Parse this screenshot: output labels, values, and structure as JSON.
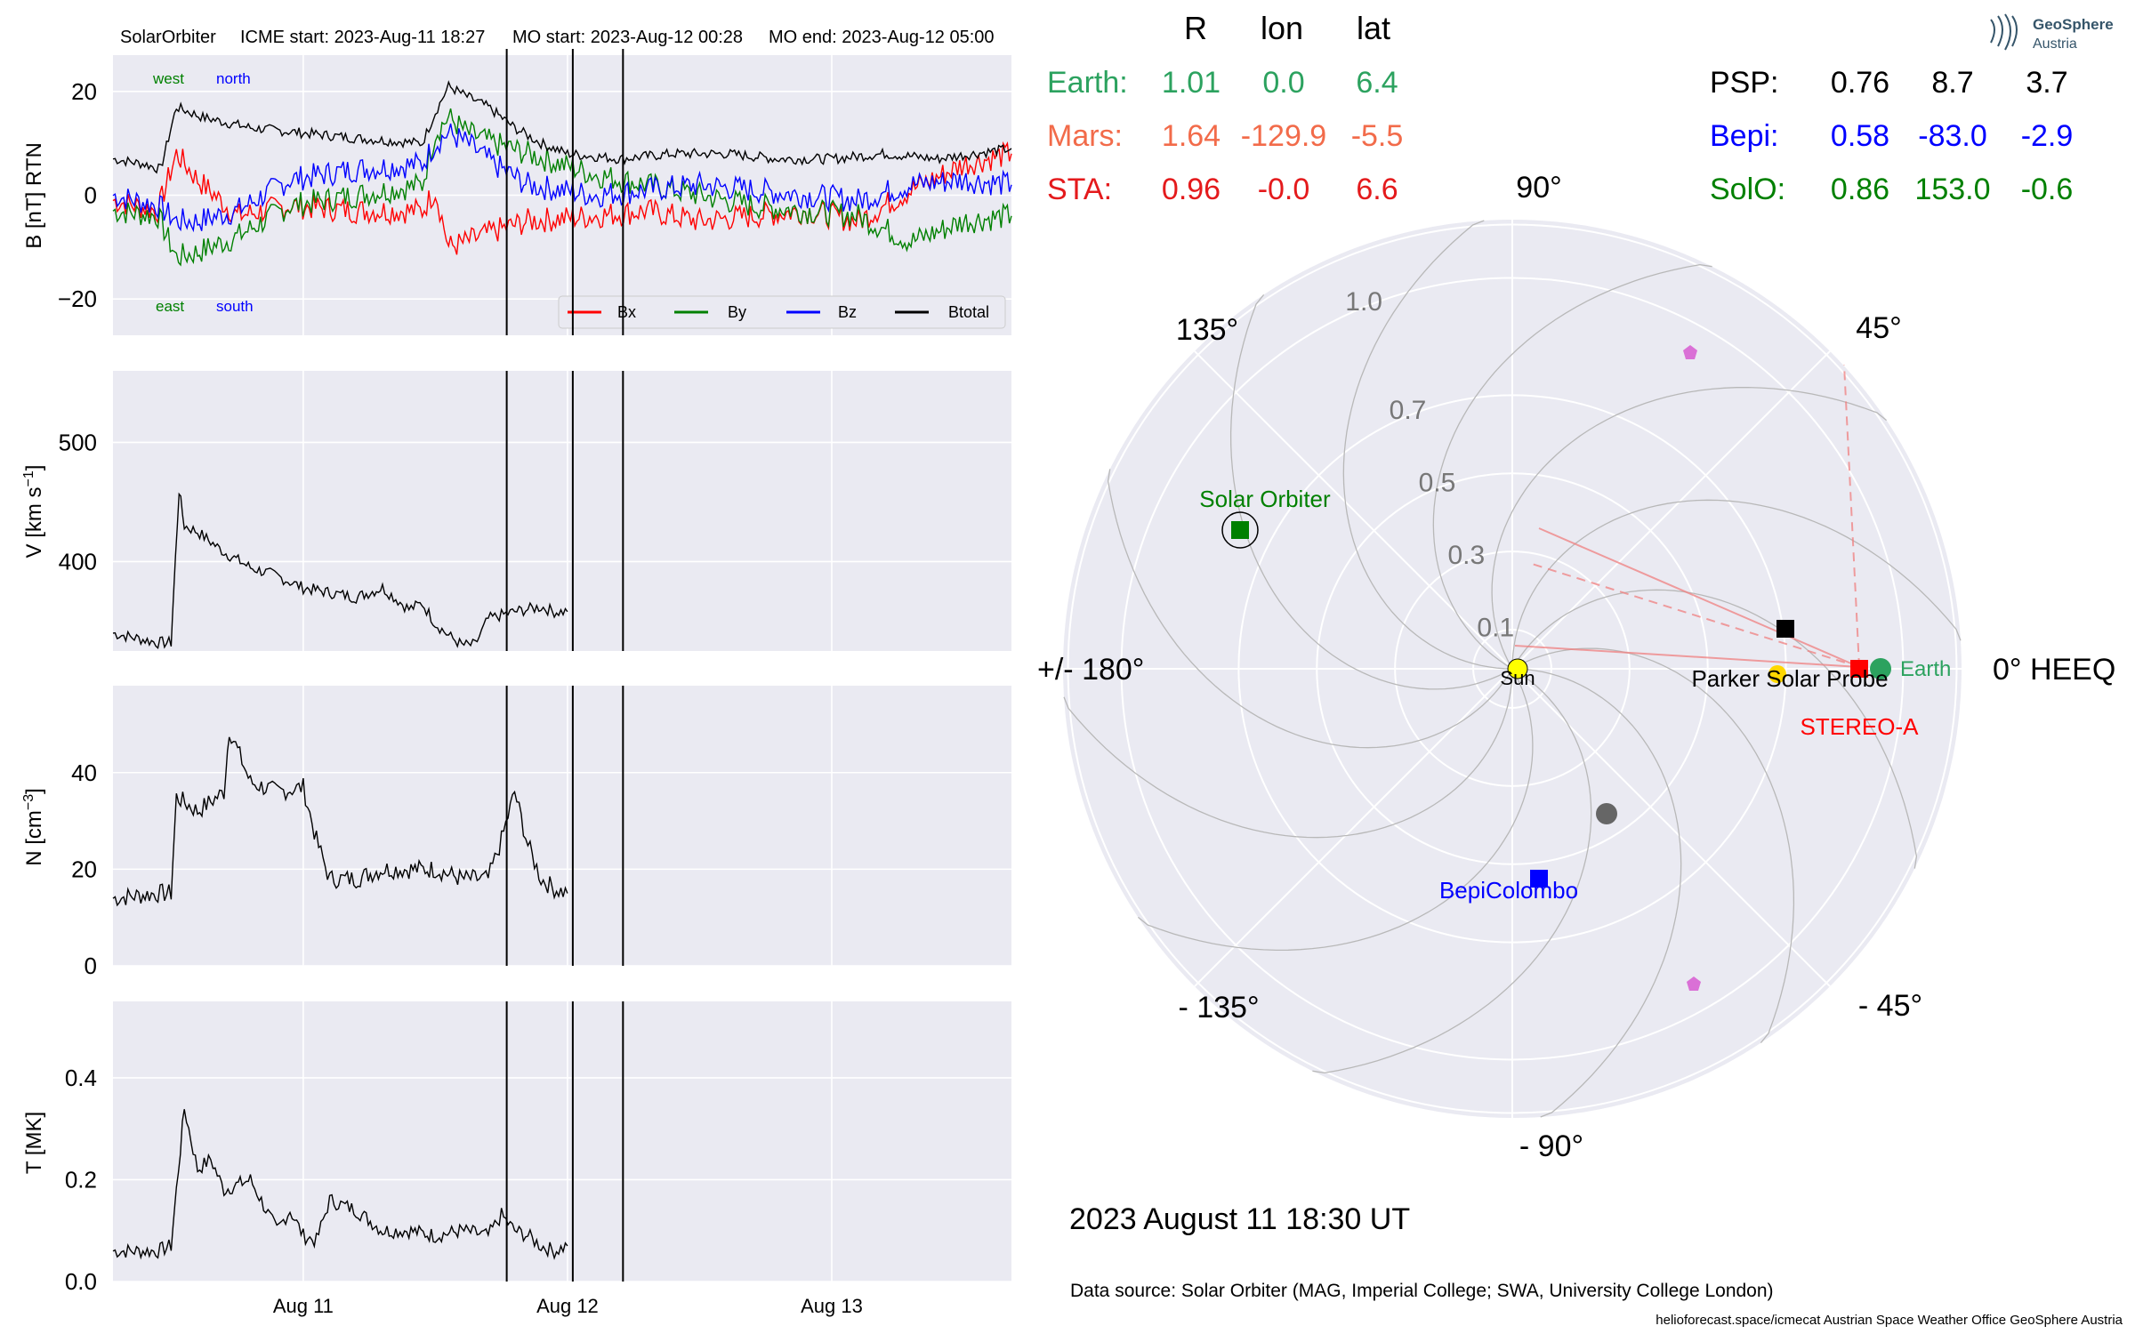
{
  "header": {
    "spacecraft": "SolarOrbiter",
    "icme_start": "ICME start: 2023-Aug-11 18:27",
    "mo_start": "MO start: 2023-Aug-12 00:28",
    "mo_end": "MO end: 2023-Aug-12 05:00"
  },
  "logo": {
    "line1": "GeoSphere",
    "line2": "Austria"
  },
  "position_table": {
    "headers": [
      "R",
      "lon",
      "lat"
    ],
    "rows_left": [
      {
        "name": "Earth:",
        "r": "1.01",
        "lon": "0.0",
        "lat": "6.4",
        "color": "#2ca25f"
      },
      {
        "name": "Mars:",
        "r": "1.64",
        "lon": "-129.9",
        "lat": "-5.5",
        "color": "#f26b4a"
      },
      {
        "name": "STA:",
        "r": "0.96",
        "lon": "-0.0",
        "lat": "6.6",
        "color": "#e41a1c"
      }
    ],
    "rows_right": [
      {
        "name": "PSP:",
        "r": "0.76",
        "lon": "8.7",
        "lat": "3.7",
        "color": "#000000"
      },
      {
        "name": "Bepi:",
        "r": "0.58",
        "lon": "-83.0",
        "lat": "-2.9",
        "color": "#0000ff"
      },
      {
        "name": "SolO:",
        "r": "0.86",
        "lon": "153.0",
        "lat": "-0.6",
        "color": "#008000"
      }
    ]
  },
  "legend": [
    "Bx",
    "By",
    "Bz",
    "Btotal"
  ],
  "orientation_labels": {
    "west": "west",
    "north": "north",
    "east": "east",
    "south": "south"
  },
  "polar": {
    "angle_labels": [
      "0° HEEQ",
      "45°",
      "90°",
      "135°",
      "+/- 180°",
      "- 135°",
      "- 90°",
      "- 45°"
    ],
    "radial_labels": [
      "0.1",
      "0.3",
      "0.5",
      "0.7",
      "1.0"
    ],
    "radial_values": [
      0.1,
      0.3,
      0.5,
      0.7,
      1.0
    ],
    "bodies": [
      {
        "name": "Sun",
        "r": 0.0,
        "lon": 0.0,
        "marker": "circle",
        "color": "#ffff00",
        "label_color": "#000000"
      },
      {
        "name": "Earth",
        "r": 1.01,
        "lon": 0.0,
        "marker": "circle",
        "color": "#2ca25f",
        "label_color": "#2ca25f"
      },
      {
        "name": "STEREO-A",
        "r": 0.96,
        "lon": 0.0,
        "marker": "square",
        "color": "#ff0000",
        "label_color": "#ff0000"
      },
      {
        "name": "Parker Solar Probe",
        "r": 0.76,
        "lon": 8.7,
        "marker": "square",
        "color": "#000000",
        "label_color": "#000000"
      },
      {
        "name": "BepiColombo",
        "r": 0.58,
        "lon": -83.0,
        "marker": "square",
        "color": "#0000ff",
        "label_color": "#0000ff"
      },
      {
        "name": "Solar Orbiter",
        "r": 0.86,
        "lon": 153.0,
        "marker": "square",
        "color": "#008000",
        "label_color": "#008000"
      },
      {
        "name": "Mercury",
        "r": 0.44,
        "lon": -48.0,
        "marker": "circle",
        "color": "#666666",
        "label_color": ""
      }
    ]
  },
  "date_label": "2023 August 11  18:30 UT",
  "data_source": "Data source: Solar Orbiter (MAG, Imperial College; SWA, University College London)",
  "footer": "helioforecast.space/icmecat   Austrian Space Weather Office   GeoSphere Austria",
  "colors": {
    "bx": "#ff0000",
    "by": "#008000",
    "bz": "#0000ff",
    "btot": "#000000",
    "panel_bg": "#eaeaf2"
  },
  "chart_data": [
    {
      "type": "line",
      "ylabel": "B [nT] RTN",
      "ylim": [
        -27,
        27
      ],
      "yticks": [
        -20,
        0,
        20
      ],
      "x_unit": "days since 2023-Aug-10 00:00",
      "xlim": [
        0.28,
        3.68
      ],
      "series": [
        {
          "name": "Bx",
          "x": [
            0.28,
            0.45,
            0.52,
            0.6,
            0.75,
            0.95,
            1.2,
            1.45,
            1.5,
            1.55,
            1.62,
            1.72,
            1.85,
            2.1,
            2.3,
            2.5,
            2.7,
            2.9,
            3.1,
            3.3,
            3.5,
            3.68
          ],
          "values": [
            -1,
            -3,
            8,
            3,
            -4,
            -2,
            -3,
            -3,
            1,
            -10,
            -9,
            -7,
            -5,
            -4,
            -3,
            -5,
            -4,
            -3,
            -5,
            1,
            6,
            8
          ]
        },
        {
          "name": "By",
          "x": [
            0.28,
            0.45,
            0.52,
            0.6,
            0.75,
            0.95,
            1.2,
            1.45,
            1.5,
            1.55,
            1.62,
            1.72,
            1.85,
            2.1,
            2.3,
            2.5,
            2.7,
            2.9,
            3.1,
            3.3,
            3.5,
            3.68
          ],
          "values": [
            -3,
            -4,
            -12,
            -11,
            -8,
            -2,
            0,
            2,
            12,
            15,
            12,
            10,
            8,
            4,
            2,
            0,
            -2,
            -3,
            -4,
            -9,
            -5,
            -4
          ]
        },
        {
          "name": "Bz",
          "x": [
            0.28,
            0.45,
            0.52,
            0.6,
            0.75,
            0.95,
            1.2,
            1.45,
            1.5,
            1.55,
            1.62,
            1.72,
            1.85,
            2.1,
            2.3,
            2.5,
            2.7,
            2.9,
            3.1,
            3.3,
            3.5,
            3.68
          ],
          "values": [
            0,
            -2,
            -5,
            -5,
            -3,
            3,
            5,
            6,
            10,
            12,
            10,
            6,
            2,
            0,
            1,
            2,
            1,
            0,
            -1,
            2,
            3,
            2
          ]
        },
        {
          "name": "Btotal",
          "x": [
            0.28,
            0.4,
            0.46,
            0.52,
            0.62,
            0.8,
            1.0,
            1.2,
            1.45,
            1.5,
            1.55,
            1.62,
            1.7,
            1.8,
            1.9,
            2.0,
            2.2,
            2.4,
            2.6,
            2.8,
            3.0,
            3.2,
            3.4,
            3.68
          ],
          "values": [
            7,
            6,
            5,
            17,
            15,
            13,
            12,
            11,
            10,
            16,
            21,
            19,
            17,
            13,
            10,
            8,
            7,
            8,
            8,
            7,
            7,
            8,
            7,
            9
          ]
        }
      ]
    },
    {
      "type": "line",
      "ylabel": "V [km s$^{-1}$]",
      "ylim": [
        325,
        560
      ],
      "yticks": [
        400,
        500
      ],
      "x": [
        0.28,
        0.45,
        0.5,
        0.51,
        0.53,
        0.55,
        0.6,
        0.7,
        0.8,
        0.9,
        1.0,
        1.1,
        1.2,
        1.3,
        1.4,
        1.45,
        1.5,
        1.55,
        1.6,
        1.65,
        1.7,
        1.75,
        1.8,
        1.85,
        1.9,
        1.95,
        2.0
      ],
      "values": [
        340,
        332,
        332,
        375,
        460,
        430,
        425,
        408,
        395,
        388,
        378,
        374,
        370,
        378,
        360,
        365,
        348,
        338,
        330,
        330,
        352,
        355,
        358,
        360,
        362,
        358,
        358
      ]
    },
    {
      "type": "line",
      "ylabel": "N [cm$^{-3}$]",
      "ylim": [
        0,
        58
      ],
      "yticks": [
        0,
        20,
        40
      ],
      "x": [
        0.28,
        0.45,
        0.5,
        0.52,
        0.6,
        0.7,
        0.72,
        0.8,
        0.9,
        1.0,
        1.05,
        1.1,
        1.2,
        1.3,
        1.4,
        1.5,
        1.6,
        1.7,
        1.75,
        1.8,
        1.85,
        1.9,
        1.95,
        2.0
      ],
      "values": [
        14,
        15,
        15,
        35,
        32,
        36,
        49,
        38,
        36,
        37,
        26,
        18,
        18,
        20,
        20,
        20,
        18,
        18,
        26,
        36,
        25,
        18,
        16,
        15
      ]
    },
    {
      "type": "line",
      "ylabel": "T [MK]",
      "ylim": [
        0,
        0.55
      ],
      "yticks": [
        0.0,
        0.2,
        0.4
      ],
      "x": [
        0.28,
        0.45,
        0.5,
        0.52,
        0.55,
        0.6,
        0.65,
        0.7,
        0.8,
        0.9,
        0.95,
        1.0,
        1.05,
        1.1,
        1.2,
        1.3,
        1.4,
        1.5,
        1.6,
        1.7,
        1.75,
        1.8,
        1.85,
        1.9,
        1.95,
        2.0
      ],
      "values": [
        0.06,
        0.06,
        0.07,
        0.18,
        0.34,
        0.22,
        0.24,
        0.18,
        0.2,
        0.1,
        0.14,
        0.09,
        0.08,
        0.16,
        0.14,
        0.1,
        0.1,
        0.09,
        0.1,
        0.09,
        0.13,
        0.1,
        0.09,
        0.07,
        0.06,
        0.07
      ]
    },
    {
      "type": "axis",
      "xticks": [
        {
          "x": 1.0,
          "label": "Aug 11"
        },
        {
          "x": 2.0,
          "label": "Aug 12"
        },
        {
          "x": 3.0,
          "label": "Aug 13"
        }
      ],
      "vlines": [
        1.77,
        2.02,
        2.21
      ]
    }
  ]
}
